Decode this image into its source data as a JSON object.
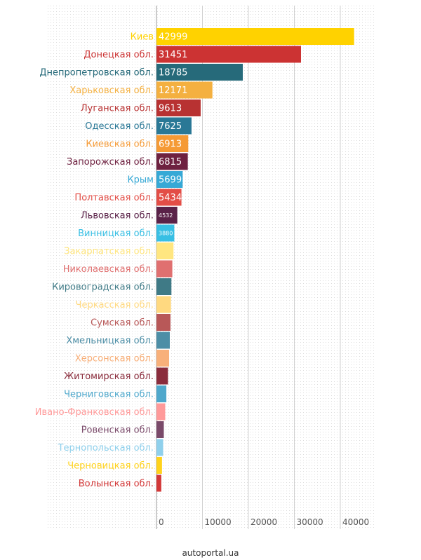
{
  "chart_data": {
    "type": "bar",
    "orientation": "horizontal",
    "categories": [
      "Киев",
      "Донецкая обл.",
      "Днепропетровская обл.",
      "Харьковская обл.",
      "Луганская обл.",
      "Одесская обл.",
      "Киевская обл.",
      "Запорожская обл.",
      "Крым",
      "Полтавская обл.",
      "Львовская обл.",
      "Винницкая обл.",
      "Закарпатская обл.",
      "Николаевская обл.",
      "Кировоградская обл.",
      "Черкасская обл.",
      "Сумская обл.",
      "Хмельницкая обл.",
      "Херсонская обл.",
      "Житомирская обл.",
      "Черниговская обл.",
      "Ивано-Франковская обл.",
      "Ровенская обл.",
      "Тернопольская обл.",
      "Черновицкая обл.",
      "Волынская обл."
    ],
    "values": [
      42999,
      31451,
      18785,
      12171,
      9613,
      7625,
      6913,
      6815,
      5699,
      5434,
      4532,
      3880,
      3700,
      3450,
      3250,
      3150,
      3050,
      2900,
      2750,
      2500,
      2150,
      1900,
      1600,
      1450,
      1200,
      1050
    ],
    "value_labels": [
      "42999",
      "31451",
      "18785",
      "12171",
      "9613",
      "7625",
      "6913",
      "6815",
      "5699",
      "5434",
      "4532",
      "3880",
      "",
      "",
      "",
      "",
      "",
      "",
      "",
      "",
      "",
      "",
      "",
      "",
      "",
      ""
    ],
    "colors": [
      "#ffd200",
      "#cc3333",
      "#266a7a",
      "#f4b040",
      "#b83232",
      "#2a7896",
      "#f59a35",
      "#6e2140",
      "#36a9d6",
      "#e34d46",
      "#5a2248",
      "#38bfe4",
      "#ffe680",
      "#e07070",
      "#3f7a86",
      "#ffd980",
      "#b85858",
      "#4d8ea6",
      "#f8b07a",
      "#8a2c3c",
      "#4fa8cc",
      "#ff9a9a",
      "#7a4a6a",
      "#8fd0ec",
      "#ffd21a",
      "#d33838"
    ],
    "xlim": [
      0,
      50000
    ],
    "xticks": [
      "0",
      "10000",
      "20000",
      "30000",
      "40000"
    ],
    "xtick_values": [
      0,
      10000,
      20000,
      30000,
      40000
    ],
    "grid": true
  },
  "source": "autoportal.ua"
}
